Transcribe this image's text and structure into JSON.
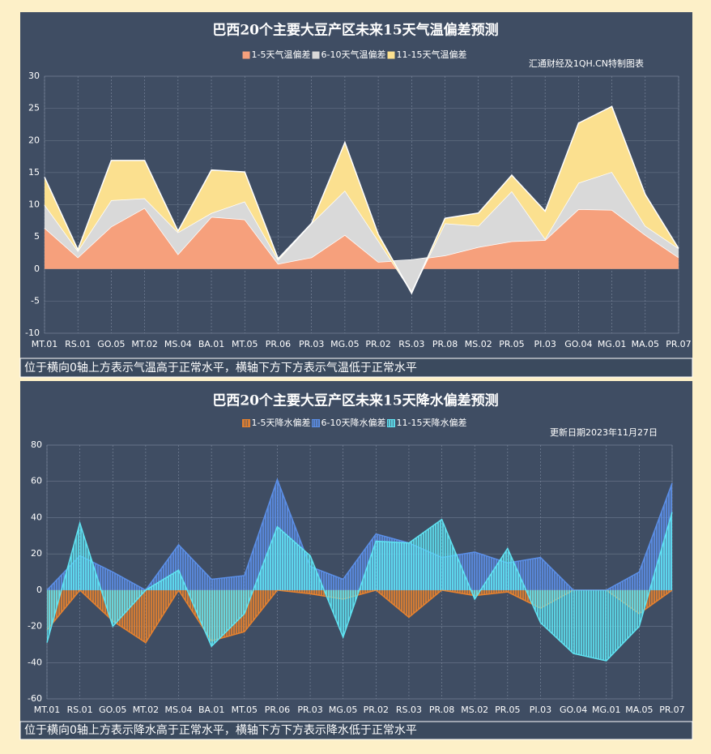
{
  "chart_data": [
    {
      "type": "area",
      "stacked": true,
      "title": "巴西20个主要大豆产区未来15天气温偏差预测",
      "source_note": "汇通财经及1QH.CN特制图表",
      "caption": "位于横向0轴上方表示气温高于正常水平，横轴下方下方表示气温低于正常水平",
      "categories": [
        "MT.01",
        "RS.01",
        "GO.05",
        "MT.02",
        "MS.04",
        "BA.01",
        "MT.05",
        "PR.06",
        "PR.03",
        "MG.05",
        "PR.02",
        "RS.03",
        "PR.08",
        "MS.02",
        "PR.05",
        "PI.03",
        "GO.04",
        "MG.01",
        "MA.05",
        "PR.07"
      ],
      "series": [
        {
          "name": "1-5天气温偏差",
          "color": "#f6a07c",
          "values": [
            6.4,
            1.8,
            6.6,
            9.5,
            2.3,
            8.1,
            7.7,
            0.8,
            1.8,
            5.3,
            1.1,
            1.4,
            2.1,
            3.4,
            4.3,
            4.5,
            9.3,
            9.2,
            5.3,
            1.8
          ]
        },
        {
          "name": "6-10天气温偏差",
          "color": "#d9d9d9",
          "values": [
            3.6,
            1.0,
            4.1,
            1.5,
            3.4,
            0.6,
            2.8,
            0.6,
            5.3,
            6.9,
            3.3,
            -5.0,
            5.0,
            3.3,
            7.8,
            0.2,
            4.1,
            5.9,
            1.4,
            1.4
          ]
        },
        {
          "name": "11-15天气温偏差",
          "color": "#fbe08f",
          "values": [
            4.3,
            0.2,
            6.2,
            5.9,
            0.2,
            6.7,
            4.6,
            0.2,
            0,
            7.5,
            1.0,
            -0.2,
            0.8,
            2.0,
            2.5,
            4.3,
            9.3,
            10.2,
            4.9,
            0
          ]
        }
      ],
      "ylim": [
        -10,
        30
      ],
      "yticks": [
        -10,
        -5,
        0,
        5,
        10,
        15,
        20,
        25,
        30
      ],
      "grid": true
    },
    {
      "type": "area",
      "stacked": false,
      "title": "巴西20个主要大豆产区未来15天降水偏差预测",
      "source_note": "更新日期2023年11月27日",
      "caption": "位于横向0轴上方表示降水高于正常水平，横轴下方下方表示降水低于正常水平",
      "categories": [
        "MT.01",
        "RS.01",
        "GO.05",
        "MT.02",
        "MS.04",
        "BA.01",
        "MT.05",
        "PR.06",
        "PR.03",
        "MG.05",
        "PR.02",
        "RS.03",
        "PR.08",
        "MS.02",
        "PR.05",
        "PI.03",
        "GO.04",
        "MG.01",
        "MA.05",
        "PR.07"
      ],
      "series": [
        {
          "name": "1-5天降水偏差",
          "color": "#e8822e",
          "values": [
            -22,
            0,
            -17,
            -29,
            0,
            -28,
            -23,
            0,
            -2,
            -5,
            0,
            -15,
            0,
            -3,
            -1,
            -10,
            0,
            0,
            -13,
            0
          ]
        },
        {
          "name": "6-10天降水偏差",
          "color": "#5b8fe8",
          "values": [
            0,
            19,
            10,
            0,
            25,
            6,
            8,
            61,
            13,
            6,
            31,
            26,
            18,
            21,
            15,
            18,
            0,
            0,
            10,
            59
          ]
        },
        {
          "name": "11-15天降水偏差",
          "color": "#5fe3f2",
          "values": [
            -29,
            37,
            -20,
            0,
            11,
            -31,
            -13,
            35,
            19,
            -26,
            27,
            26,
            39,
            -5,
            23,
            -18,
            -35,
            -39,
            -20,
            43
          ]
        }
      ],
      "ylim": [
        -60,
        80
      ],
      "yticks": [
        -60,
        -40,
        -20,
        0,
        20,
        40,
        60,
        80
      ],
      "grid": true
    }
  ]
}
